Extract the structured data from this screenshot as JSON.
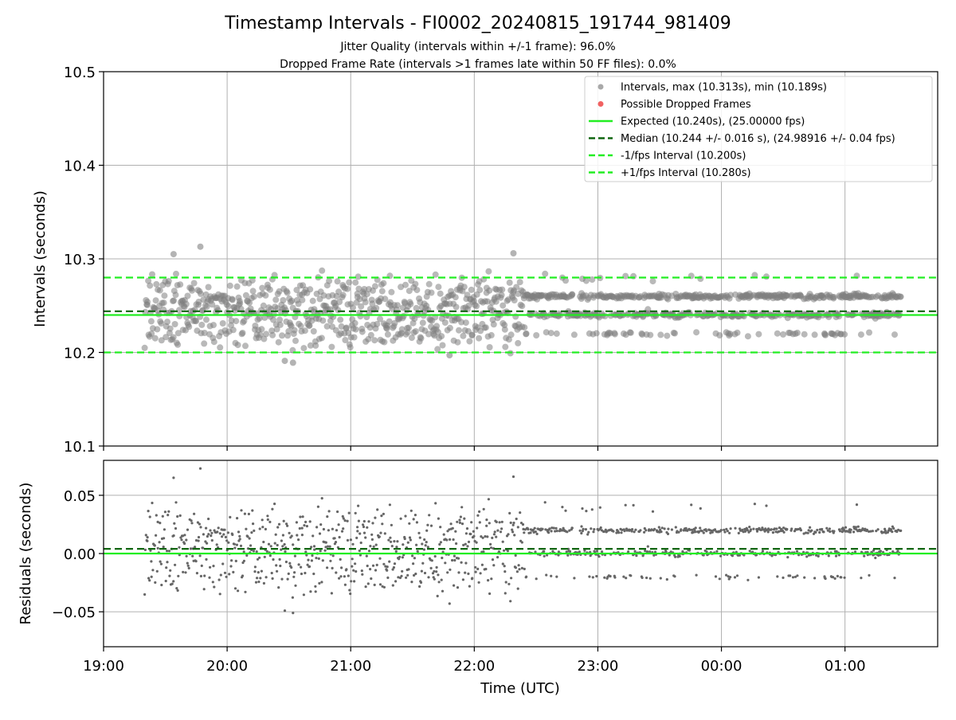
{
  "figure": {
    "title": "Timestamp Intervals - FI0002_20240815_191744_981409",
    "subtitle_1": "Jitter Quality (intervals within +/-1 frame): 96.0%",
    "subtitle_2": "Dropped Frame Rate (intervals >1 frames late within 50 FF files): 0.0%",
    "xlabel": "Time (UTC)"
  },
  "colors": {
    "points": "#808080",
    "dropped": "#f05050",
    "expected": "#22ee22",
    "median": "#116611",
    "fps_interval": "#22ee22",
    "grid": "#b0b0b0",
    "axis": "#000000"
  },
  "chart_data": [
    {
      "type": "scatter",
      "panel": "top",
      "ylabel": "Intervals (seconds)",
      "ylim": [
        10.1,
        10.5
      ],
      "yticks": [
        10.1,
        10.2,
        10.3,
        10.4,
        10.5
      ],
      "ytick_labels": [
        "10.1",
        "10.2",
        "10.3",
        "10.4",
        "10.5"
      ],
      "xlim": [
        "19:00",
        "01:45"
      ],
      "xticks": [
        "19:00",
        "20:00",
        "21:00",
        "22:00",
        "23:00",
        "00:00",
        "01:00"
      ],
      "grid": true,
      "legend_position": "top-right",
      "legend": [
        {
          "label": "Intervals, max (10.313s), min (10.189s)",
          "marker": "circle",
          "color": "#a0a0a0"
        },
        {
          "label": "Possible Dropped Frames",
          "marker": "circle",
          "color": "#f05050"
        },
        {
          "label": "Expected (10.240s), (25.00000 fps)",
          "marker": "solid-line",
          "color": "#22ee22"
        },
        {
          "label": "Median (10.244 +/- 0.016 s), (24.98916 +/- 0.04 fps)",
          "marker": "dashed-line",
          "color": "#116611"
        },
        {
          "label": "-1/fps Interval (10.200s)",
          "marker": "dashed-line",
          "color": "#22ee22"
        },
        {
          "label": "+1/fps Interval (10.280s)",
          "marker": "dashed-line",
          "color": "#22ee22"
        }
      ],
      "reference_lines": {
        "expected": 10.24,
        "median": 10.244,
        "minus_fps": 10.2,
        "plus_fps": 10.28
      },
      "series": [
        {
          "name": "Intervals",
          "x_range": [
            "19:20",
            "01:27"
          ],
          "levels": [
            10.22,
            10.24,
            10.26
          ],
          "max": 10.313,
          "min": 10.189,
          "notable_points": [
            {
              "x": "19:47",
              "y": 10.313
            },
            {
              "x": "20:28",
              "y": 10.191
            },
            {
              "x": "20:32",
              "y": 10.189
            },
            {
              "x": "22:19",
              "y": 10.306
            },
            {
              "x": "21:48",
              "y": 10.197
            },
            {
              "x": "19:34",
              "y": 10.305
            }
          ]
        }
      ]
    },
    {
      "type": "scatter",
      "panel": "bottom",
      "ylabel": "Residuals (seconds)",
      "ylim": [
        -0.08,
        0.08
      ],
      "yticks": [
        -0.05,
        0.0,
        0.05
      ],
      "ytick_labels": [
        "−0.05",
        "0.00",
        "0.05"
      ],
      "xlim": [
        "19:00",
        "01:45"
      ],
      "xticks": [
        "19:00",
        "20:00",
        "21:00",
        "22:00",
        "23:00",
        "00:00",
        "01:00"
      ],
      "xtick_labels": [
        "19:00",
        "20:00",
        "21:00",
        "22:00",
        "23:00",
        "00:00",
        "01:00"
      ],
      "grid": true,
      "reference_lines": {
        "expected": 0.0,
        "median": 0.004
      },
      "series": [
        {
          "name": "Residuals",
          "x_range": [
            "19:20",
            "01:27"
          ],
          "levels": [
            -0.02,
            0.0,
            0.02
          ],
          "max": 0.073,
          "min": -0.051
        }
      ]
    }
  ]
}
